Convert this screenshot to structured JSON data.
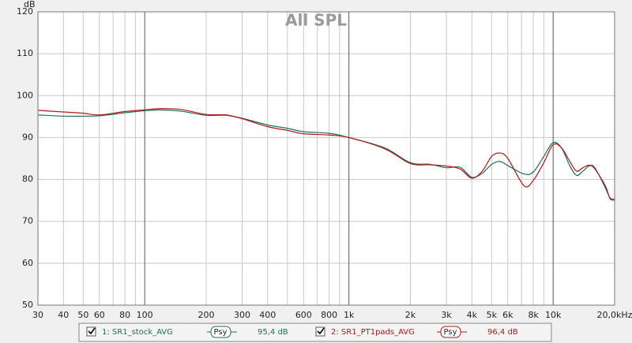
{
  "chart_data": {
    "type": "line",
    "title": "All SPL",
    "ylabel": "dB",
    "log_x": true,
    "grid": true,
    "xlim": [
      30,
      20000
    ],
    "ylim": [
      50,
      120
    ],
    "xticks": [
      30,
      40,
      50,
      60,
      80,
      100,
      200,
      300,
      400,
      600,
      800,
      {
        "value": 1000,
        "label": "1k"
      },
      {
        "value": 2000,
        "label": "2k"
      },
      {
        "value": 3000,
        "label": "3k"
      },
      {
        "value": 4000,
        "label": "4k"
      },
      {
        "value": 5000,
        "label": "5k"
      },
      {
        "value": 6000,
        "label": "6k"
      },
      {
        "value": 8000,
        "label": "8k"
      },
      {
        "value": 10000,
        "label": "10k"
      },
      {
        "value": 20000,
        "label": "20,0kHz"
      }
    ],
    "xminorticks": [
      70,
      90,
      500,
      700,
      900,
      7000,
      9000
    ],
    "xmajorticks": [
      100,
      1000,
      10000
    ],
    "yticks": [
      50,
      60,
      70,
      80,
      90,
      100,
      110,
      120
    ],
    "x": [
      30,
      40,
      50,
      60,
      80,
      100,
      120,
      150,
      200,
      250,
      300,
      400,
      500,
      600,
      800,
      1000,
      1500,
      2000,
      2500,
      3000,
      3500,
      4000,
      4500,
      5000,
      5500,
      6000,
      7200,
      8000,
      9000,
      10000,
      11000,
      12000,
      13000,
      14000,
      15000,
      16000,
      18000,
      19000,
      20000
    ],
    "series": [
      {
        "name": "1: SR1_stock_AVG",
        "color": "#1f6e5c",
        "smoothing": "Psy",
        "level": "95,4 dB",
        "values": [
          95.4,
          95.1,
          95.1,
          95.2,
          95.9,
          96.4,
          96.6,
          96.3,
          95.3,
          95.3,
          94.6,
          93.0,
          92.2,
          91.4,
          91.0,
          90.0,
          87.5,
          84.0,
          83.6,
          82.8,
          82.9,
          80.5,
          81.5,
          83.6,
          84.3,
          83.3,
          81.3,
          81.8,
          85.5,
          88.8,
          87.5,
          83.5,
          81.0,
          82.0,
          83.2,
          82.8,
          78.0,
          75.6,
          75.3
        ]
      },
      {
        "name": "2: SR1_PT1pads_AVG",
        "color": "#b01818",
        "smoothing": "Psy",
        "level": "96,4 dB",
        "values": [
          96.5,
          96.1,
          95.8,
          95.4,
          96.2,
          96.6,
          96.9,
          96.7,
          95.5,
          95.4,
          94.5,
          92.6,
          91.7,
          90.9,
          90.6,
          90.0,
          87.3,
          83.8,
          83.5,
          83.2,
          82.5,
          80.3,
          82.0,
          85.5,
          86.3,
          85.0,
          78.5,
          79.8,
          84.0,
          88.3,
          87.5,
          84.5,
          82.0,
          82.8,
          83.4,
          82.5,
          78.5,
          75.4,
          75.1
        ]
      }
    ]
  }
}
